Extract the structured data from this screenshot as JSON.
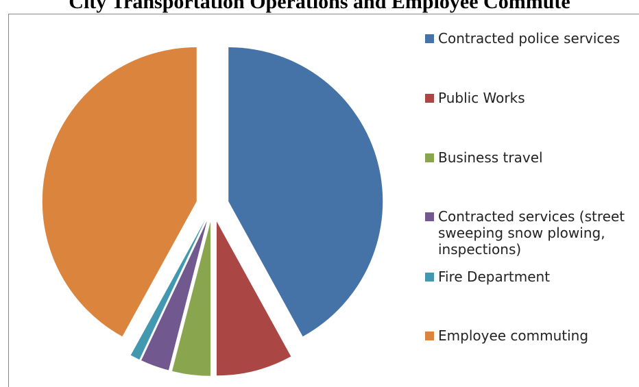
{
  "chart_data": {
    "type": "pie",
    "title": "City Transportation Operations and Employee Commute",
    "categories": [
      "Contracted police services",
      "Public Works",
      "Business travel",
      "Contracted services (street sweeping snow plowing, inspections)",
      "Fire Department",
      "Employee commuting"
    ],
    "values": [
      42,
      8,
      4,
      3,
      1,
      42
    ],
    "colors": [
      "#4572a7",
      "#aa4643",
      "#89a54e",
      "#71588f",
      "#4198af",
      "#db843d"
    ],
    "legend": "right",
    "exploded": true
  }
}
